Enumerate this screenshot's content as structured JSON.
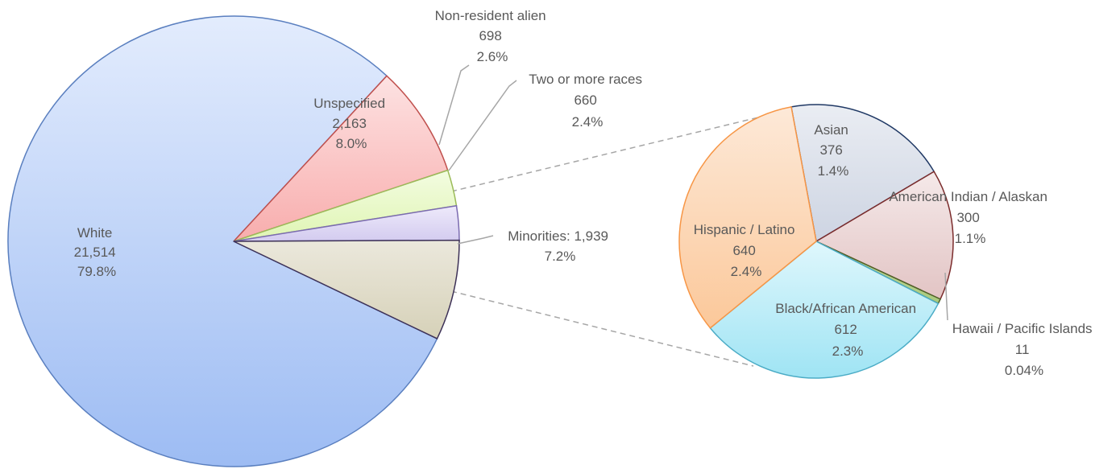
{
  "chart_data": [
    {
      "type": "pie",
      "slices": [
        {
          "label": "White",
          "value": 21514,
          "value_text": "21,514",
          "percent_text": "79.8%",
          "color": "#a9c4f5"
        },
        {
          "label": "Unspecified",
          "value": 2163,
          "value_text": "2,163",
          "percent_text": "8.0%",
          "color": "#f9b8b8"
        },
        {
          "label": "Non-resident alien",
          "value": 698,
          "value_text": "698",
          "percent_text": "2.6%",
          "color": "#e6f7c0"
        },
        {
          "label": "Two or more races",
          "value": 660,
          "value_text": "660",
          "percent_text": "2.4%",
          "color": "#dcd5f2"
        },
        {
          "label": "Minorities: 1,939",
          "value": 1939,
          "value_text": "",
          "percent_text": "7.2%",
          "color": "#dcd8c3"
        }
      ]
    },
    {
      "type": "pie",
      "slices": [
        {
          "label": "Asian",
          "value": 376,
          "value_text": "376",
          "percent_text": "1.4%",
          "color": "#d5dbe6"
        },
        {
          "label": "American Indian / Alaskan",
          "value": 300,
          "value_text": "300",
          "percent_text": "1.1%",
          "color": "#ead2d2"
        },
        {
          "label": "Hawaii / Pacific Islands",
          "value": 11,
          "value_text": "11",
          "percent_text": "0.04%",
          "color": "#b5d18f"
        },
        {
          "label": "Black/African American",
          "value": 612,
          "value_text": "612",
          "percent_text": "2.3%",
          "color": "#c2eef8"
        },
        {
          "label": "Hispanic / Latino",
          "value": 640,
          "value_text": "640",
          "percent_text": "2.4%",
          "color": "#fcd3b0"
        }
      ]
    }
  ]
}
